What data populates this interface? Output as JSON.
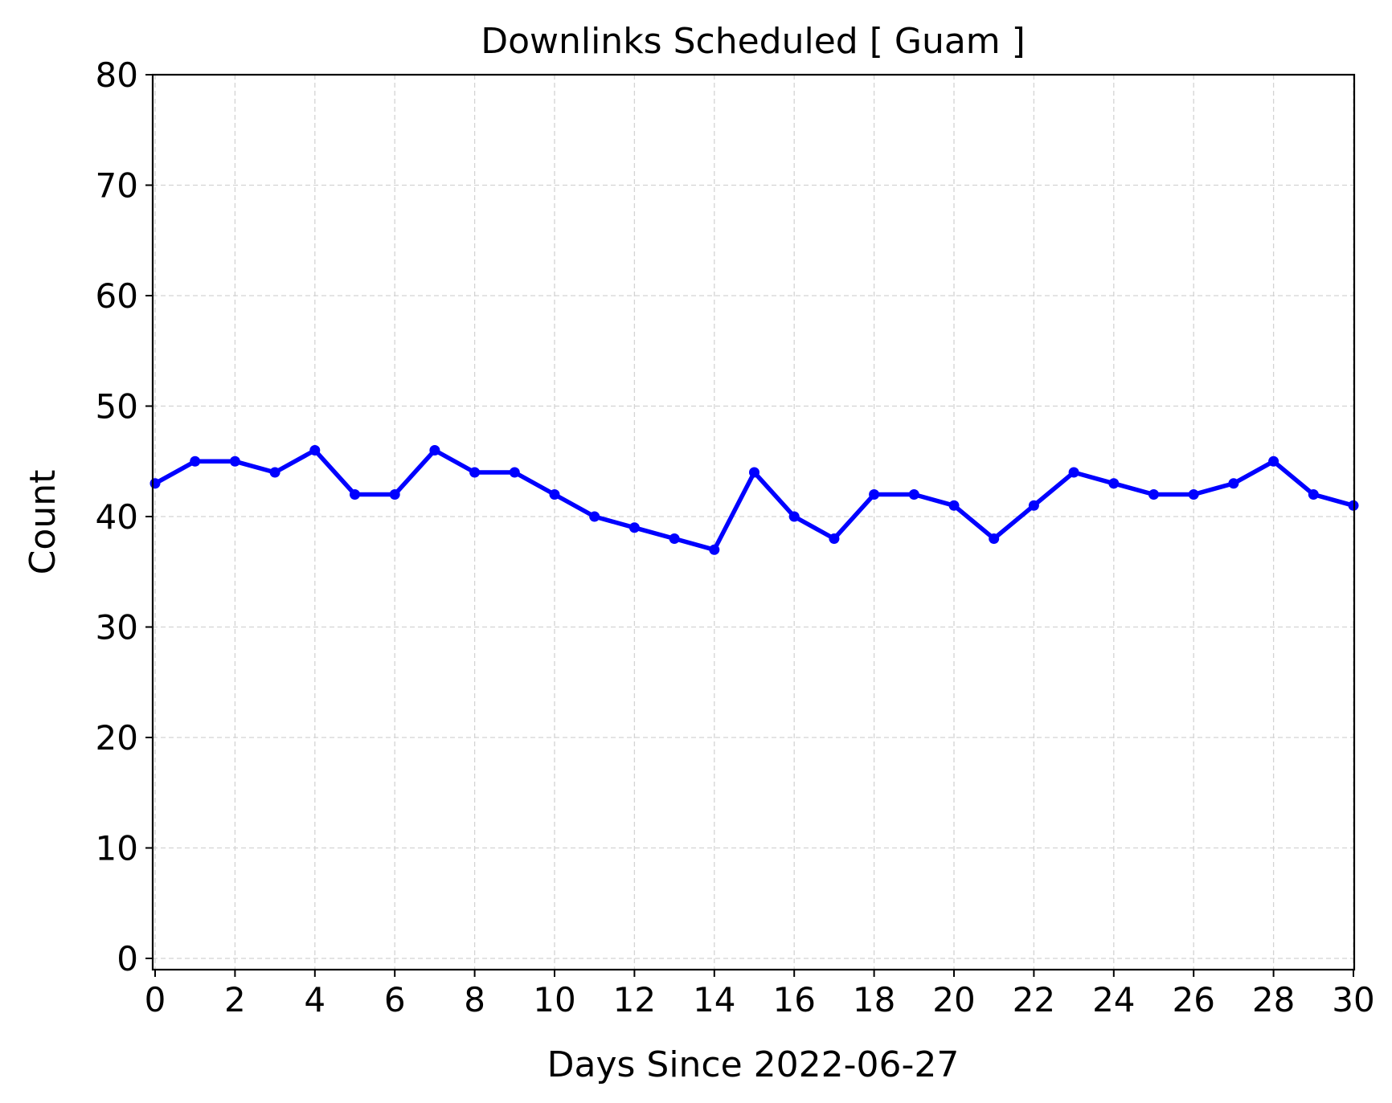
{
  "chart_data": {
    "type": "line",
    "title": "Downlinks Scheduled [ Guam ]",
    "xlabel": "Days Since 2022-06-27",
    "ylabel": "Count",
    "xlim": [
      0,
      30
    ],
    "ylim": [
      0,
      80
    ],
    "xticks": [
      0,
      2,
      4,
      6,
      8,
      10,
      12,
      14,
      16,
      18,
      20,
      22,
      24,
      26,
      28,
      30
    ],
    "yticks": [
      0,
      10,
      20,
      30,
      40,
      50,
      60,
      70,
      80
    ],
    "grid": true,
    "series": [
      {
        "color": "#0000ff",
        "marker": "circle",
        "x": [
          0,
          1,
          2,
          3,
          4,
          5,
          6,
          7,
          8,
          9,
          10,
          11,
          12,
          13,
          14,
          15,
          16,
          17,
          18,
          19,
          20,
          21,
          22,
          23,
          24,
          25,
          26,
          27,
          28,
          29,
          30
        ],
        "y": [
          43,
          45,
          45,
          44,
          46,
          42,
          42,
          46,
          44,
          44,
          42,
          40,
          39,
          38,
          37,
          44,
          40,
          38,
          42,
          42,
          41,
          38,
          41,
          44,
          43,
          42,
          42,
          43,
          45,
          42,
          41
        ]
      }
    ]
  }
}
